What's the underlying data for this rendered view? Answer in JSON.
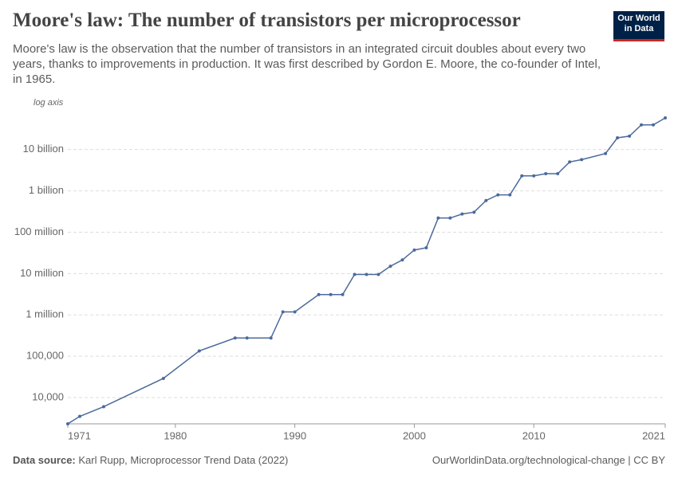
{
  "chart_data": {
    "type": "line",
    "title": "Moore's law: The number of transistors per microprocessor",
    "subtitle": "Moore's law is the observation that the number of transistors in an integrated circuit doubles about every two years, thanks to improvements in production. It was first described by Gordon E. Moore, the co-founder of Intel, in 1965.",
    "logo": [
      "Our World",
      "in Data"
    ],
    "axis_note": "log axis",
    "log_scale": true,
    "grid": true,
    "color": "#4c6a9c",
    "x": [
      1971,
      1972,
      1974,
      1979,
      1982,
      1985,
      1986,
      1988,
      1989,
      1990,
      1992,
      1993,
      1994,
      1995,
      1996,
      1997,
      1998,
      1999,
      2000,
      2001,
      2002,
      2003,
      2004,
      2005,
      2006,
      2007,
      2008,
      2009,
      2010,
      2011,
      2012,
      2013,
      2014,
      2016,
      2017,
      2018,
      2019,
      2020,
      2021
    ],
    "values": [
      2308,
      3500,
      6000,
      29000,
      134000,
      275000,
      275000,
      275000,
      1180000,
      1180000,
      3100000,
      3100000,
      3100000,
      9500000,
      9500000,
      9500000,
      15000000,
      21300000,
      37000000,
      42000000,
      220000000,
      220000000,
      275000000,
      305000000,
      582000000,
      800000000,
      800000000,
      2300000000,
      2300000000,
      2600000000,
      2600000000,
      5000000000,
      5700000000,
      8000000000,
      19200000000,
      21100000000,
      39500000000,
      39500000000,
      58200000000
    ],
    "xlim": [
      1971,
      2021
    ],
    "xticks": [
      1971,
      1980,
      1990,
      2000,
      2010,
      2021
    ],
    "ylim": [
      2308,
      58200000000
    ],
    "yticks": [
      {
        "value": 10000,
        "label": "10,000"
      },
      {
        "value": 100000,
        "label": "100,000"
      },
      {
        "value": 1000000,
        "label": "1 million"
      },
      {
        "value": 10000000,
        "label": "10 million"
      },
      {
        "value": 100000000,
        "label": "100 million"
      },
      {
        "value": 1000000000,
        "label": "1 billion"
      },
      {
        "value": 10000000000,
        "label": "10 billion"
      }
    ],
    "source_label": "Data source:",
    "source": "Karl Rupp, Microprocessor Trend Data (2022)",
    "credit": "OurWorldinData.org/technological-change | CC BY"
  }
}
